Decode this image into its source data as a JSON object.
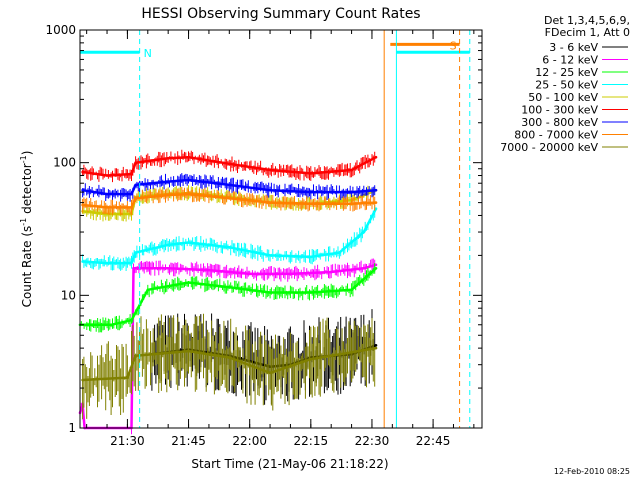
{
  "chart_data": {
    "type": "line",
    "title": "HESSI Observing Summary Count Rates",
    "xlabel": "Start Time (21-May-06 21:18:22)",
    "ylabel_parts": [
      "Count Rate (s",
      "-1",
      " detector",
      "-1",
      ")"
    ],
    "yscale": "log",
    "ylim": [
      1,
      1000
    ],
    "xlim": [
      "21:18:22",
      "22:57:00"
    ],
    "x_ticks": [
      "21:30",
      "21:45",
      "22:00",
      "22:15",
      "22:30",
      "22:45"
    ],
    "y_ticks": [
      "1",
      "10",
      "100",
      "1000"
    ],
    "legend_header": [
      "Det 1,3,4,5,6,9,",
      "FDecim 1, Att 0"
    ],
    "series": [
      {
        "name": "3 - 6 keV",
        "color": "#000000",
        "x": [
          "21:36",
          "21:45",
          "21:55",
          "22:05",
          "22:10",
          "22:15",
          "22:25",
          "22:31"
        ],
        "values": [
          3.6,
          3.9,
          3.5,
          2.9,
          3.0,
          3.4,
          3.6,
          4.2
        ]
      },
      {
        "name": "6 - 12 keV",
        "color": "#ff00ff",
        "x": [
          "21:18:22",
          "21:19",
          "21:19:30",
          "21:31",
          "21:31:30",
          "21:40",
          "21:50",
          "22:00",
          "22:10",
          "22:20",
          "22:28",
          "22:31"
        ],
        "values": [
          1.3,
          1.5,
          1,
          1,
          16,
          16,
          15.5,
          14.5,
          14.5,
          15,
          16,
          17
        ]
      },
      {
        "name": "12 - 25 keV",
        "color": "#00ff00",
        "x": [
          "21:18:22",
          "21:26",
          "21:31",
          "21:35",
          "21:45",
          "21:55",
          "22:05",
          "22:15",
          "22:25",
          "22:31"
        ],
        "values": [
          6,
          6,
          6.5,
          11,
          12.5,
          11.5,
          10.5,
          10.5,
          11,
          16
        ]
      },
      {
        "name": "25 - 50 keV",
        "color": "#00ffff",
        "x": [
          "21:19",
          "21:25",
          "21:31",
          "21:32",
          "21:40",
          "21:45",
          "21:55",
          "22:05",
          "22:15",
          "22:22",
          "22:28",
          "22:31"
        ],
        "values": [
          18,
          17.5,
          17.5,
          21,
          24,
          25,
          23,
          20,
          19.5,
          21,
          30,
          45
        ]
      },
      {
        "name": "50 - 100 keV",
        "color": "#cccc00",
        "x": [
          "21:19",
          "21:25",
          "21:31",
          "21:32",
          "21:40",
          "21:45",
          "21:55",
          "22:05",
          "22:15",
          "22:25",
          "22:31"
        ],
        "values": [
          43,
          41,
          41,
          55,
          58,
          59,
          55,
          50,
          49,
          52,
          62
        ]
      },
      {
        "name": "100 - 300 keV",
        "color": "#ff0000",
        "x": [
          "21:19",
          "21:25",
          "21:31",
          "21:32",
          "21:40",
          "21:45",
          "21:55",
          "22:05",
          "22:15",
          "22:25",
          "22:31"
        ],
        "values": [
          85,
          80,
          82,
          100,
          108,
          110,
          98,
          88,
          83,
          88,
          110
        ]
      },
      {
        "name": "300 - 800 keV",
        "color": "#0000ff",
        "x": [
          "21:19",
          "21:25",
          "21:31",
          "21:32",
          "21:40",
          "21:45",
          "21:55",
          "22:05",
          "22:15",
          "22:25",
          "22:31"
        ],
        "values": [
          62,
          58,
          58,
          68,
          72,
          74,
          68,
          62,
          60,
          60,
          62
        ]
      },
      {
        "name": "800 - 7000 keV",
        "color": "#ff8000",
        "x": [
          "21:19",
          "21:25",
          "21:31",
          "21:32",
          "21:40",
          "21:45",
          "21:55",
          "22:05",
          "22:15",
          "22:25",
          "22:31"
        ],
        "values": [
          48,
          46,
          46,
          54,
          57,
          58,
          54,
          50,
          49,
          49,
          50
        ]
      },
      {
        "name": "7000 - 20000 keV",
        "color": "#808000",
        "x": [
          "21:19",
          "21:30",
          "21:32",
          "21:45",
          "21:55",
          "22:05",
          "22:15",
          "22:31"
        ],
        "values": [
          2.3,
          2.4,
          3.5,
          3.8,
          3.4,
          2.6,
          3.3,
          4.0
        ]
      }
    ],
    "annotations": [
      {
        "text": "N",
        "color": "#00ffff",
        "level": 680,
        "from": "21:18:22",
        "to": "21:33"
      },
      {
        "text": "S",
        "color": "#ff8000",
        "level": 780,
        "from": "22:34:30",
        "to": "22:51:30"
      }
    ],
    "night_band": {
      "color": "#00ffff",
      "level": 680,
      "from": "22:36",
      "to": "22:54"
    },
    "event_lines": [
      {
        "color": "#00ffff",
        "at": "21:33",
        "style": "dashed"
      },
      {
        "color": "#ff8000",
        "at": "22:33",
        "style": "solid"
      },
      {
        "color": "#00ffff",
        "at": "22:36",
        "style": "solid"
      },
      {
        "color": "#ff8000",
        "at": "22:51:30",
        "style": "dashed"
      },
      {
        "color": "#00ffff",
        "at": "22:54",
        "style": "dashed"
      }
    ],
    "grid": false,
    "legend_position": "right"
  },
  "footer_date": "12-Feb-2010 08:25"
}
